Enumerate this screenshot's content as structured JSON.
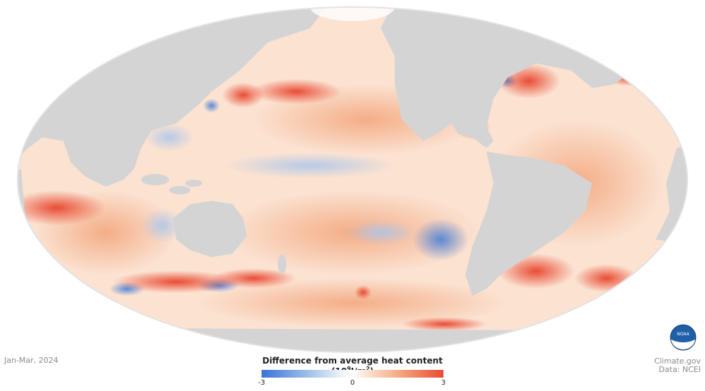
{
  "map": {
    "projection": "Mollweide (Pacific-centered)",
    "land_color": "#d4d4d4",
    "background_color": "#e3e3e3"
  },
  "date_label": "Jan-Mar, 2024",
  "legend": {
    "title_main": "Difference from average heat content (10",
    "title_sup1": "9",
    "title_mid": "J/m",
    "title_sup2": "2",
    "title_end": ")",
    "min_label": "-3",
    "mid_label": "0",
    "max_label": "3",
    "colors": {
      "cold": "#3a72d6",
      "neutral": "#ffffff",
      "warm": "#ea4a32"
    }
  },
  "credits": {
    "site": "Climate.gov",
    "data": "Data: NCEI",
    "logo_text": "NOAA"
  }
}
